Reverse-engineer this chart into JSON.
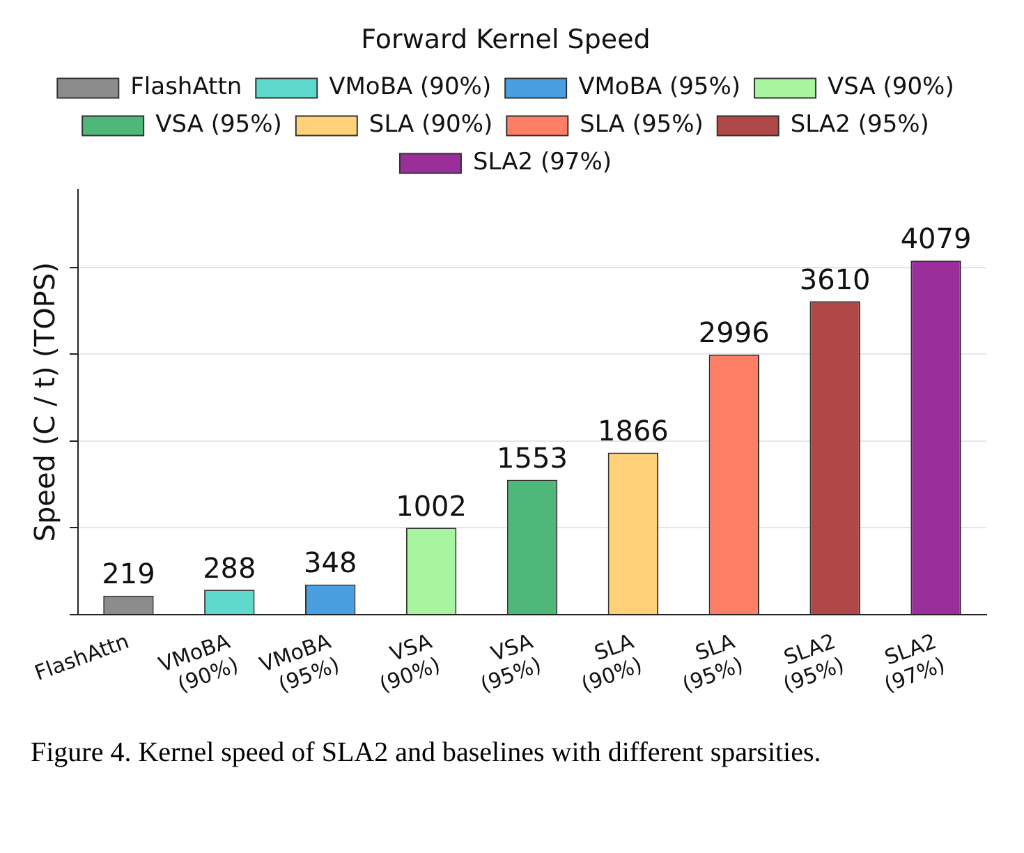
{
  "chart_data": {
    "type": "bar",
    "title": "Forward Kernel Speed",
    "ylabel": "Speed (C / t) (TOPS)",
    "categories": [
      "FlashAttn",
      "VMoBA (90%)",
      "VMoBA (95%)",
      "VSA (90%)",
      "VSA (95%)",
      "SLA (90%)",
      "SLA (95%)",
      "SLA2 (95%)",
      "SLA2 (97%)"
    ],
    "series": [
      {
        "name": "FlashAttn",
        "color": "#8c8c8c",
        "values": [
          219,
          null,
          null,
          null,
          null,
          null,
          null,
          null,
          null
        ]
      },
      {
        "name": "VMoBA (90%)",
        "color": "#5fd9cc",
        "values": [
          null,
          288,
          null,
          null,
          null,
          null,
          null,
          null,
          null
        ]
      },
      {
        "name": "VMoBA (95%)",
        "color": "#4a9fe0",
        "values": [
          null,
          null,
          348,
          null,
          null,
          null,
          null,
          null,
          null
        ]
      },
      {
        "name": "VSA (90%)",
        "color": "#a8f5a0",
        "values": [
          null,
          null,
          null,
          1002,
          null,
          null,
          null,
          null,
          null
        ]
      },
      {
        "name": "VSA (95%)",
        "color": "#4db87a",
        "values": [
          null,
          null,
          null,
          null,
          1553,
          null,
          null,
          null,
          null
        ]
      },
      {
        "name": "SLA (90%)",
        "color": "#ffd27a",
        "values": [
          null,
          null,
          null,
          null,
          null,
          1866,
          null,
          null,
          null
        ]
      },
      {
        "name": "SLA (95%)",
        "color": "#ff7f66",
        "values": [
          null,
          null,
          null,
          null,
          null,
          null,
          2996,
          null,
          null
        ]
      },
      {
        "name": "SLA2 (95%)",
        "color": "#b04848",
        "values": [
          null,
          null,
          null,
          null,
          null,
          null,
          null,
          3610,
          null
        ]
      },
      {
        "name": "SLA2 (97%)",
        "color": "#9a2e9a",
        "values": [
          null,
          null,
          null,
          null,
          null,
          null,
          null,
          null,
          4079
        ]
      }
    ],
    "ylim": [
      0,
      4900
    ],
    "yticks": [
      {
        "value": 0,
        "label": null
      },
      {
        "value": 1000,
        "label": null
      },
      {
        "value": 2000,
        "label": null
      },
      {
        "value": 3000,
        "label": null
      },
      {
        "value": 4000,
        "label": null
      }
    ],
    "tick_labels": "x",
    "grid": "y",
    "legend": "top",
    "data_labels": true,
    "annotations": [
      "Figure 4.  Kernel speed of SLA2 and baselines with different sparsities."
    ]
  }
}
